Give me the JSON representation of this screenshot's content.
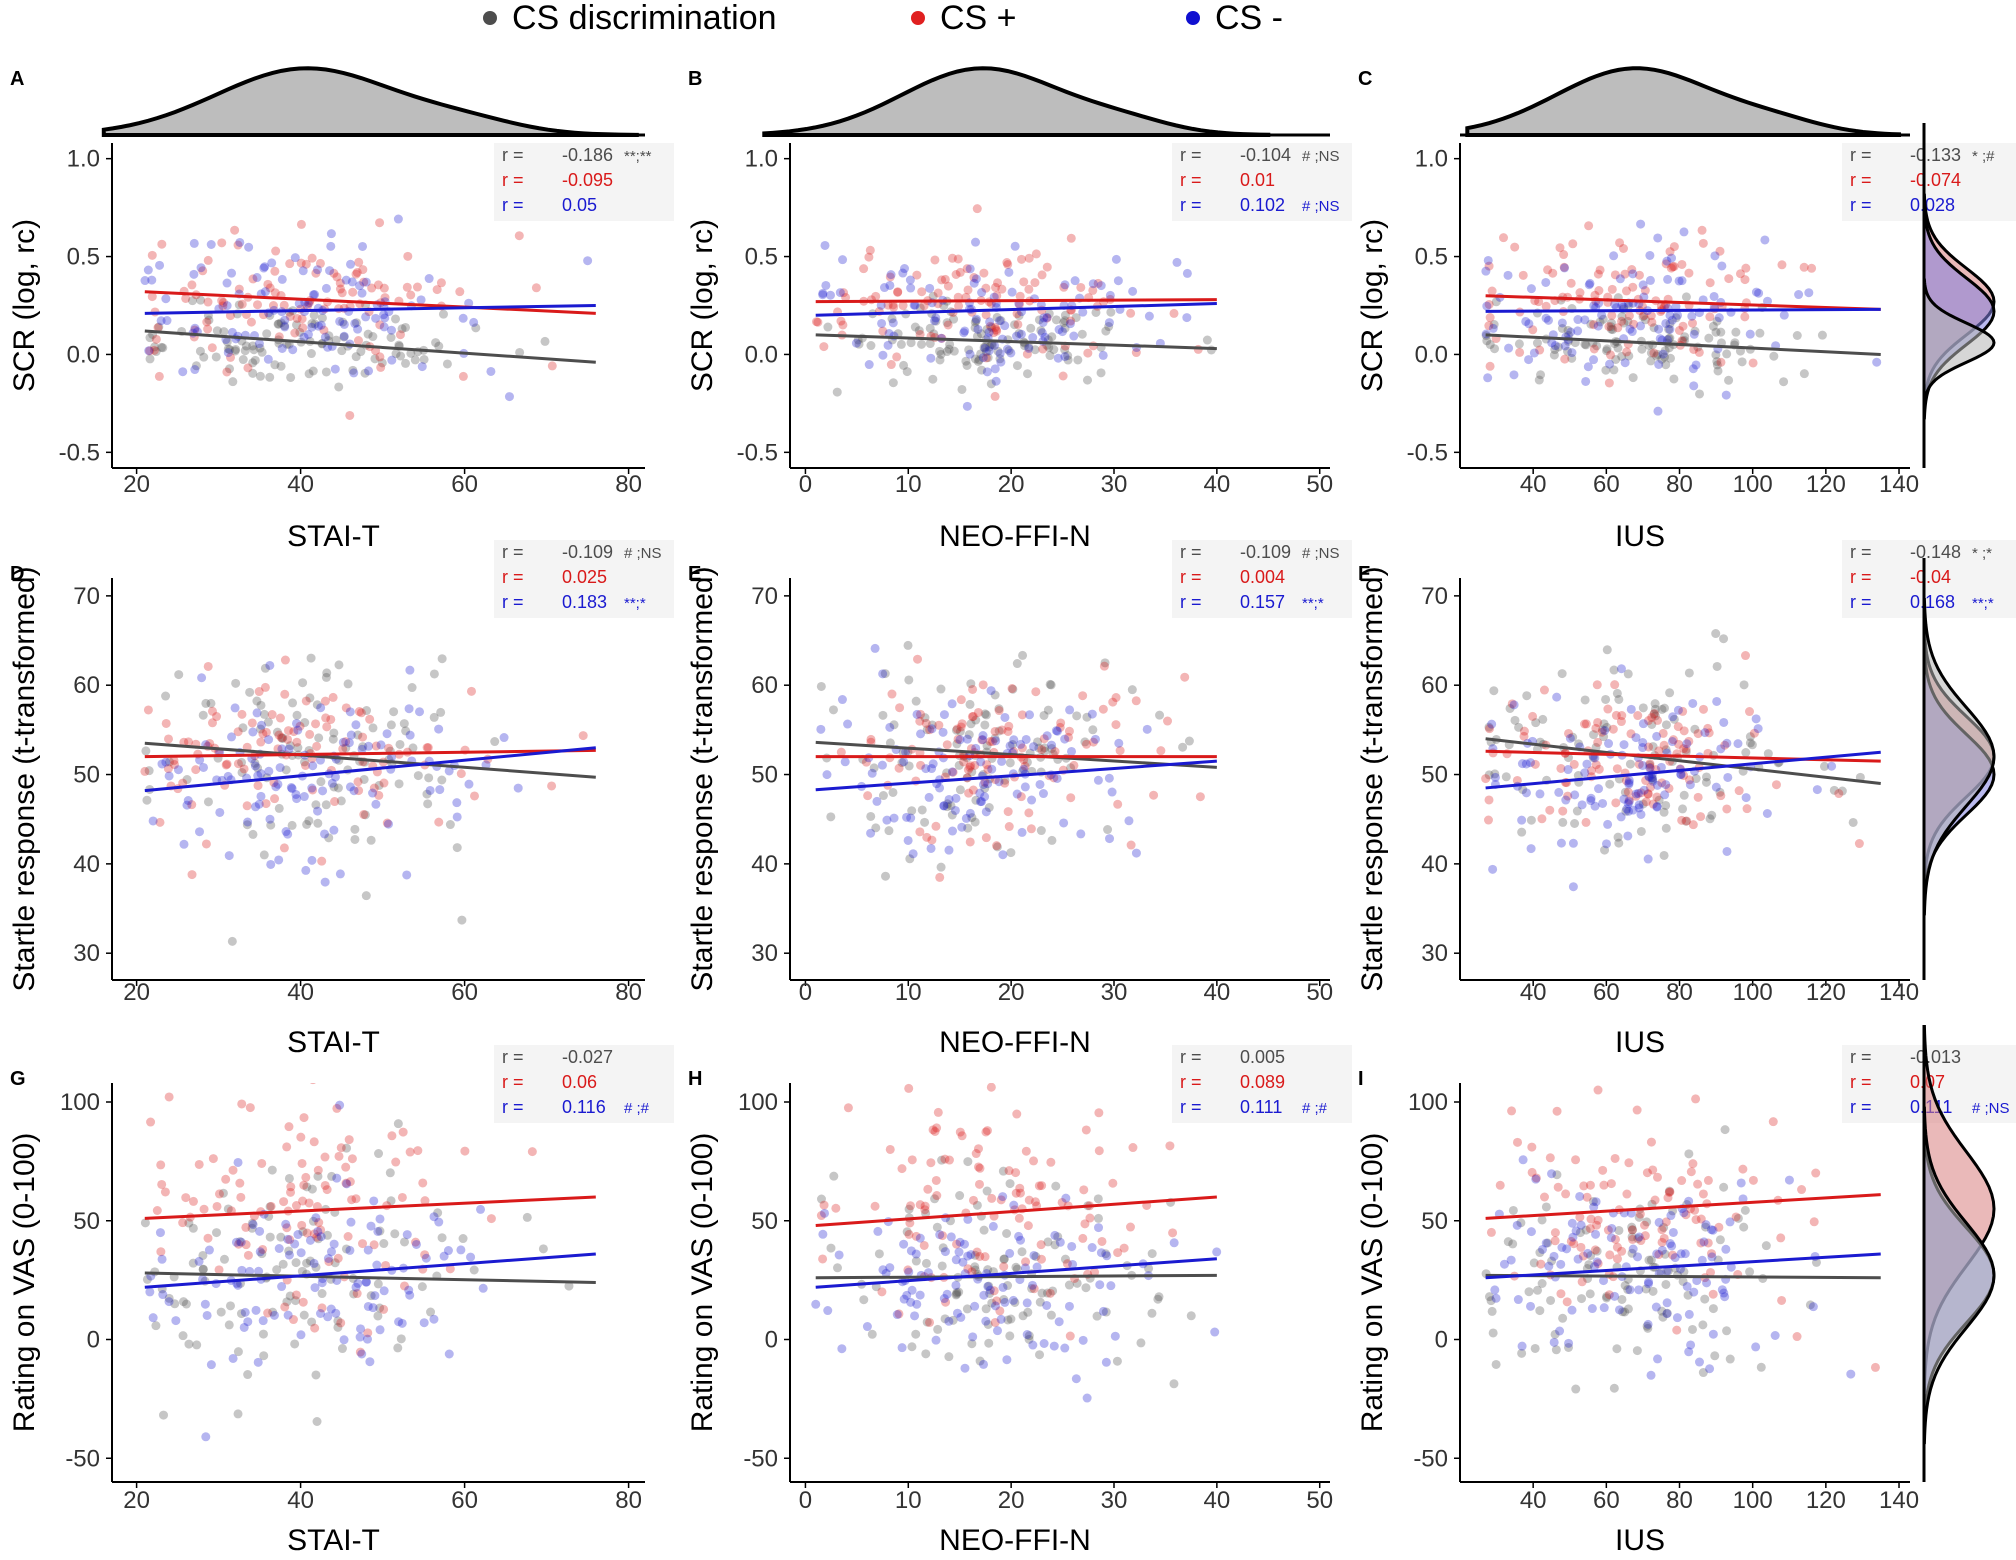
{
  "legend": [
    {
      "label": "CS discrimination",
      "color": "#4d4d4d"
    },
    {
      "label": "CS +",
      "color": "#e02020"
    },
    {
      "label": "CS -",
      "color": "#1010d0"
    }
  ],
  "colors": {
    "cs_disc": "#4d4d4d",
    "cs_plus": "#d91a1a",
    "cs_minus": "#1a1ad0",
    "density_fill": "#bdbdbd"
  },
  "chart_data": [
    {
      "type": "scatter",
      "panel": "A",
      "title": "A",
      "xlabel": "STAI-T",
      "ylabel": "SCR (log, rc)",
      "xlim": [
        17,
        82
      ],
      "ylim": [
        -0.58,
        1.08
      ],
      "xticks": [
        20,
        40,
        60,
        80
      ],
      "xticklabels": [
        "20",
        "40",
        "60",
        "80"
      ],
      "yticks": [
        -0.5,
        0,
        0.5,
        1.0
      ],
      "yticklabels": [
        "-0.5",
        "0.0",
        "0.5",
        "1.0"
      ],
      "x_range": [
        21,
        76
      ],
      "series": [
        {
          "name": "CS discrimination",
          "r": "-0.186",
          "sig": "**;**",
          "line": [
            0.12,
            -0.04
          ],
          "mean": 0.06,
          "sd": 0.1
        },
        {
          "name": "CS +",
          "r": "-0.095",
          "sig": "",
          "line": [
            0.32,
            0.21
          ],
          "mean": 0.28,
          "sd": 0.17
        },
        {
          "name": "CS -",
          "r": "0.05",
          "sig": "",
          "line": [
            0.21,
            0.25
          ],
          "mean": 0.22,
          "sd": 0.17
        }
      ],
      "top_density": true,
      "right_density": false
    },
    {
      "type": "scatter",
      "panel": "B",
      "title": "B",
      "xlabel": "NEO-FFI-N",
      "ylabel": "SCR (log, rc)",
      "xlim": [
        -1.5,
        51
      ],
      "ylim": [
        -0.58,
        1.08
      ],
      "xticks": [
        0,
        10,
        20,
        30,
        40,
        50
      ],
      "xticklabels": [
        "0",
        "10",
        "20",
        "30",
        "40",
        "50"
      ],
      "yticks": [
        -0.5,
        0,
        0.5,
        1.0
      ],
      "yticklabels": [
        "-0.5",
        "0.0",
        "0.5",
        "1.0"
      ],
      "x_range": [
        1,
        40
      ],
      "series": [
        {
          "name": "CS discrimination",
          "r": "-0.104",
          "sig": "# ;NS",
          "line": [
            0.1,
            0.03
          ],
          "mean": 0.06,
          "sd": 0.1
        },
        {
          "name": "CS +",
          "r": "0.01",
          "sig": "",
          "line": [
            0.27,
            0.28
          ],
          "mean": 0.27,
          "sd": 0.17
        },
        {
          "name": "CS -",
          "r": "0.102",
          "sig": "# ;NS",
          "line": [
            0.2,
            0.26
          ],
          "mean": 0.22,
          "sd": 0.17
        }
      ],
      "top_density": true,
      "right_density": false
    },
    {
      "type": "scatter",
      "panel": "C",
      "title": "C",
      "xlabel": "IUS",
      "ylabel": "SCR (log, rc)",
      "xlim": [
        20,
        143
      ],
      "ylim": [
        -0.58,
        1.08
      ],
      "xticks": [
        40,
        60,
        80,
        100,
        120,
        140
      ],
      "xticklabels": [
        "40",
        "60",
        "80",
        "100",
        "120",
        "140"
      ],
      "yticks": [
        -0.5,
        0,
        0.5,
        1.0
      ],
      "yticklabels": [
        "-0.5",
        "0.0",
        "0.5",
        "1.0"
      ],
      "x_range": [
        27,
        135
      ],
      "series": [
        {
          "name": "CS discrimination",
          "r": "-0.133",
          "sig": "* ;#",
          "line": [
            0.1,
            0.0
          ],
          "mean": 0.06,
          "sd": 0.1
        },
        {
          "name": "CS +",
          "r": "-0.074",
          "sig": "",
          "line": [
            0.3,
            0.23
          ],
          "mean": 0.27,
          "sd": 0.17
        },
        {
          "name": "CS -",
          "r": "0.028",
          "sig": "",
          "line": [
            0.22,
            0.23
          ],
          "mean": 0.22,
          "sd": 0.17
        }
      ],
      "top_density": true,
      "right_density": true
    },
    {
      "type": "scatter",
      "panel": "D",
      "title": "D",
      "xlabel": "STAI-T",
      "ylabel": "Startle response (t-transformed)",
      "xlim": [
        17,
        82
      ],
      "ylim": [
        27,
        72
      ],
      "xticks": [
        20,
        40,
        60,
        80
      ],
      "xticklabels": [
        "20",
        "40",
        "60",
        "80"
      ],
      "yticks": [
        30,
        40,
        50,
        60,
        70
      ],
      "yticklabels": [
        "30",
        "40",
        "50",
        "60",
        "70"
      ],
      "x_range": [
        21,
        76
      ],
      "series": [
        {
          "name": "CS discrimination",
          "r": "-0.109",
          "sig": "# ;NS",
          "line": [
            53.5,
            49.7
          ],
          "mean": 52,
          "sd": 5.5
        },
        {
          "name": "CS +",
          "r": "0.025",
          "sig": "",
          "line": [
            52.0,
            52.7
          ],
          "mean": 52,
          "sd": 4.5
        },
        {
          "name": "CS -",
          "r": "0.183",
          "sig": "**;*",
          "line": [
            48.2,
            53.0
          ],
          "mean": 50,
          "sd": 4.5
        }
      ],
      "top_density": false,
      "right_density": false
    },
    {
      "type": "scatter",
      "panel": "E",
      "title": "E",
      "xlabel": "NEO-FFI-N",
      "ylabel": "Startle response (t-transformed)",
      "xlim": [
        -1.5,
        51
      ],
      "ylim": [
        27,
        72
      ],
      "xticks": [
        0,
        10,
        20,
        30,
        40,
        50
      ],
      "xticklabels": [
        "0",
        "10",
        "20",
        "30",
        "40",
        "50"
      ],
      "yticks": [
        30,
        40,
        50,
        60,
        70
      ],
      "yticklabels": [
        "30",
        "40",
        "50",
        "60",
        "70"
      ],
      "x_range": [
        1,
        40
      ],
      "series": [
        {
          "name": "CS discrimination",
          "r": "-0.109",
          "sig": "# ;NS",
          "line": [
            53.6,
            50.8
          ],
          "mean": 52,
          "sd": 5.5
        },
        {
          "name": "CS +",
          "r": "0.004",
          "sig": "",
          "line": [
            52.0,
            52.0
          ],
          "mean": 52,
          "sd": 4.5
        },
        {
          "name": "CS -",
          "r": "0.157",
          "sig": "**;*",
          "line": [
            48.3,
            51.5
          ],
          "mean": 50,
          "sd": 4.5
        }
      ],
      "top_density": false,
      "right_density": false
    },
    {
      "type": "scatter",
      "panel": "F",
      "title": "F",
      "xlabel": "IUS",
      "ylabel": "Startle response (t-transformed)",
      "xlim": [
        20,
        143
      ],
      "ylim": [
        27,
        72
      ],
      "xticks": [
        40,
        60,
        80,
        100,
        120,
        140
      ],
      "xticklabels": [
        "40",
        "60",
        "80",
        "100",
        "120",
        "140"
      ],
      "yticks": [
        30,
        40,
        50,
        60,
        70
      ],
      "yticklabels": [
        "30",
        "40",
        "50",
        "60",
        "70"
      ],
      "x_range": [
        27,
        135
      ],
      "series": [
        {
          "name": "CS discrimination",
          "r": "-0.148",
          "sig": "* ;*",
          "line": [
            54.0,
            49.0
          ],
          "mean": 52,
          "sd": 5.5
        },
        {
          "name": "CS +",
          "r": "-0.04",
          "sig": "",
          "line": [
            52.6,
            51.5
          ],
          "mean": 52,
          "sd": 4.5
        },
        {
          "name": "CS -",
          "r": "0.168",
          "sig": "**;*",
          "line": [
            48.5,
            52.5
          ],
          "mean": 50,
          "sd": 4.5
        }
      ],
      "top_density": false,
      "right_density": true
    },
    {
      "type": "scatter",
      "panel": "G",
      "title": "G",
      "xlabel": "STAI-T",
      "ylabel": "Rating on VAS (0-100)",
      "xlim": [
        17,
        82
      ],
      "ylim": [
        -60,
        108
      ],
      "xticks": [
        20,
        40,
        60,
        80
      ],
      "xticklabels": [
        "20",
        "40",
        "60",
        "80"
      ],
      "yticks": [
        -50,
        0,
        50,
        100
      ],
      "yticklabels": [
        "-50",
        "0",
        "50",
        "100"
      ],
      "x_range": [
        21,
        76
      ],
      "series": [
        {
          "name": "CS discrimination",
          "r": "-0.027",
          "sig": "",
          "line": [
            28,
            24
          ],
          "mean": 27,
          "sd": 22
        },
        {
          "name": "CS +",
          "r": "0.06",
          "sig": "",
          "line": [
            51,
            60
          ],
          "mean": 55,
          "sd": 24
        },
        {
          "name": "CS -",
          "r": "0.116",
          "sig": "# ;#",
          "line": [
            22,
            36
          ],
          "mean": 27,
          "sd": 20
        }
      ],
      "top_density": false,
      "right_density": false
    },
    {
      "type": "scatter",
      "panel": "H",
      "title": "H",
      "xlabel": "NEO-FFI-N",
      "ylabel": "Rating on VAS (0-100)",
      "xlim": [
        -1.5,
        51
      ],
      "ylim": [
        -60,
        108
      ],
      "xticks": [
        0,
        10,
        20,
        30,
        40,
        50
      ],
      "xticklabels": [
        "0",
        "10",
        "20",
        "30",
        "40",
        "50"
      ],
      "yticks": [
        -50,
        0,
        50,
        100
      ],
      "yticklabels": [
        "-50",
        "0",
        "50",
        "100"
      ],
      "x_range": [
        1,
        40
      ],
      "series": [
        {
          "name": "CS discrimination",
          "r": "0.005",
          "sig": "",
          "line": [
            26,
            27
          ],
          "mean": 27,
          "sd": 22
        },
        {
          "name": "CS +",
          "r": "0.089",
          "sig": "",
          "line": [
            48,
            60
          ],
          "mean": 55,
          "sd": 24
        },
        {
          "name": "CS -",
          "r": "0.111",
          "sig": "# ;#",
          "line": [
            22,
            34
          ],
          "mean": 27,
          "sd": 20
        }
      ],
      "top_density": false,
      "right_density": false
    },
    {
      "type": "scatter",
      "panel": "I",
      "title": "I",
      "xlabel": "IUS",
      "ylabel": "Rating on VAS (0-100)",
      "xlim": [
        20,
        143
      ],
      "ylim": [
        -60,
        108
      ],
      "xticks": [
        40,
        60,
        80,
        100,
        120,
        140
      ],
      "xticklabels": [
        "40",
        "60",
        "80",
        "100",
        "120",
        "140"
      ],
      "yticks": [
        -50,
        0,
        50,
        100
      ],
      "yticklabels": [
        "-50",
        "0",
        "50",
        "100"
      ],
      "x_range": [
        27,
        135
      ],
      "series": [
        {
          "name": "CS discrimination",
          "r": "-0.013",
          "sig": "",
          "line": [
            27,
            26
          ],
          "mean": 27,
          "sd": 22
        },
        {
          "name": "CS +",
          "r": "0.07",
          "sig": "",
          "line": [
            51,
            61
          ],
          "mean": 55,
          "sd": 24
        },
        {
          "name": "CS -",
          "r": "0.111",
          "sig": "# ;NS",
          "line": [
            26,
            36
          ],
          "mean": 27,
          "sd": 20
        }
      ],
      "top_density": false,
      "right_density": true
    }
  ]
}
